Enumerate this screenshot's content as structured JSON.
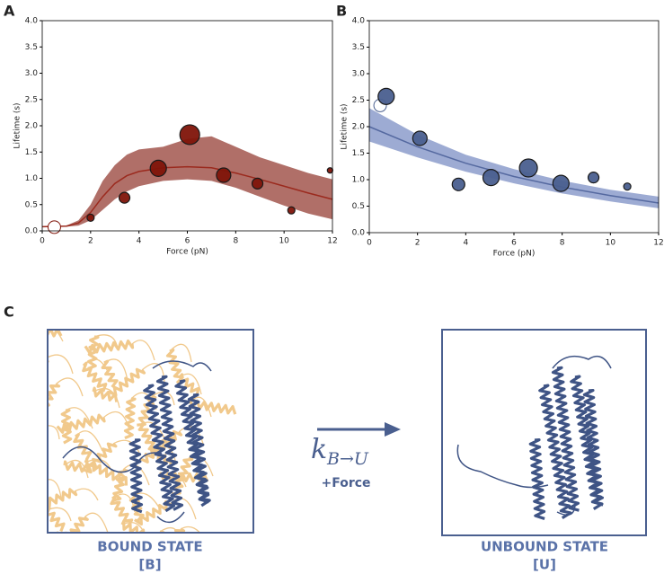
{
  "chart_data": [
    {
      "type": "scatter",
      "label": "A",
      "xlabel": "Force (pN)",
      "ylabel": "Lifetime (s)",
      "xlim": [
        0,
        12
      ],
      "ylim": [
        0,
        4.0
      ],
      "xticks": [
        0,
        2,
        4,
        6,
        8,
        10,
        12
      ],
      "yticks": [
        {
          "value": 0,
          "label": "0.0"
        },
        {
          "value": 0.5,
          "label": "0.5"
        },
        {
          "value": 1,
          "label": "1.0"
        },
        {
          "value": 1.5,
          "label": "1.5"
        },
        {
          "value": 2,
          "label": "2.0"
        },
        {
          "value": 2.5,
          "label": "2.5"
        },
        {
          "value": 3,
          "label": "3.0"
        },
        {
          "value": 3.5,
          "label": "3.5"
        },
        {
          "value": 4,
          "label": "4.0"
        }
      ],
      "color": "#7f1409",
      "points": {
        "x": [
          0.5,
          2.0,
          3.4,
          4.8,
          6.1,
          7.5,
          8.9,
          10.3,
          11.9
        ],
        "values": [
          0.07,
          0.25,
          0.63,
          1.19,
          1.83,
          1.06,
          0.9,
          0.39,
          1.15
        ],
        "sizes": [
          7,
          4,
          6,
          9,
          11,
          8,
          6,
          4,
          3
        ],
        "filled": [
          false,
          true,
          true,
          true,
          true,
          true,
          true,
          true,
          true
        ]
      },
      "fit": {
        "color": "#9b2a1e",
        "band_color": "#a2564e",
        "x": [
          0,
          1,
          1.5,
          2,
          2.5,
          3,
          3.5,
          4,
          5,
          6,
          7,
          8,
          9,
          10,
          11,
          12
        ],
        "values": [
          0.08,
          0.09,
          0.15,
          0.35,
          0.65,
          0.9,
          1.05,
          1.13,
          1.2,
          1.22,
          1.2,
          1.1,
          0.98,
          0.85,
          0.72,
          0.6
        ],
        "lower": [
          0.08,
          0.08,
          0.1,
          0.2,
          0.4,
          0.6,
          0.75,
          0.85,
          0.95,
          0.98,
          0.95,
          0.82,
          0.65,
          0.48,
          0.33,
          0.22
        ],
        "upper": [
          0.08,
          0.1,
          0.2,
          0.5,
          0.95,
          1.25,
          1.45,
          1.55,
          1.6,
          1.75,
          1.8,
          1.6,
          1.4,
          1.25,
          1.1,
          0.98
        ]
      }
    },
    {
      "type": "scatter",
      "label": "B",
      "xlabel": "Force (pN)",
      "ylabel": "Lifetime (s)",
      "xlim": [
        0,
        12
      ],
      "ylim": [
        0,
        4.0
      ],
      "xticks": [
        0,
        2,
        4,
        6,
        8,
        10,
        12
      ],
      "yticks": [
        {
          "value": 0,
          "label": "0.0"
        },
        {
          "value": 0.5,
          "label": "0.5"
        },
        {
          "value": 1,
          "label": "1.0"
        },
        {
          "value": 1.5,
          "label": "1.5"
        },
        {
          "value": 2,
          "label": "2.0"
        },
        {
          "value": 2.5,
          "label": "2.5"
        },
        {
          "value": 3,
          "label": "3.0"
        },
        {
          "value": 3.5,
          "label": "3.5"
        },
        {
          "value": 4,
          "label": "4.0"
        }
      ],
      "color": "#4a5f8f",
      "points": {
        "x": [
          0.45,
          0.7,
          2.1,
          3.7,
          5.05,
          6.6,
          7.95,
          9.3,
          10.7
        ],
        "values": [
          2.4,
          2.57,
          1.78,
          0.91,
          1.04,
          1.22,
          0.93,
          1.04,
          0.87
        ],
        "sizes": [
          7,
          9,
          8,
          7,
          9,
          10,
          9,
          6,
          4
        ],
        "filled": [
          false,
          true,
          true,
          true,
          true,
          true,
          true,
          true,
          true
        ]
      },
      "fit": {
        "color": "#5569a0",
        "band_color": "#8c9ccb",
        "x": [
          0,
          2,
          4,
          6,
          8,
          10,
          12
        ],
        "values": [
          2.0,
          1.62,
          1.31,
          1.06,
          0.86,
          0.7,
          0.56
        ],
        "lower": [
          1.72,
          1.42,
          1.15,
          0.93,
          0.74,
          0.59,
          0.46
        ],
        "upper": [
          2.35,
          1.85,
          1.47,
          1.2,
          0.98,
          0.81,
          0.68
        ]
      }
    }
  ],
  "panel_c": {
    "label": "C",
    "bound": {
      "title": "BOUND STATE",
      "symbol": "[B]"
    },
    "unbound": {
      "title": "UNBOUND STATE",
      "symbol": "[U]"
    },
    "rate": {
      "symbol": "k",
      "subscript": "B→U",
      "condition": "+Force"
    }
  }
}
